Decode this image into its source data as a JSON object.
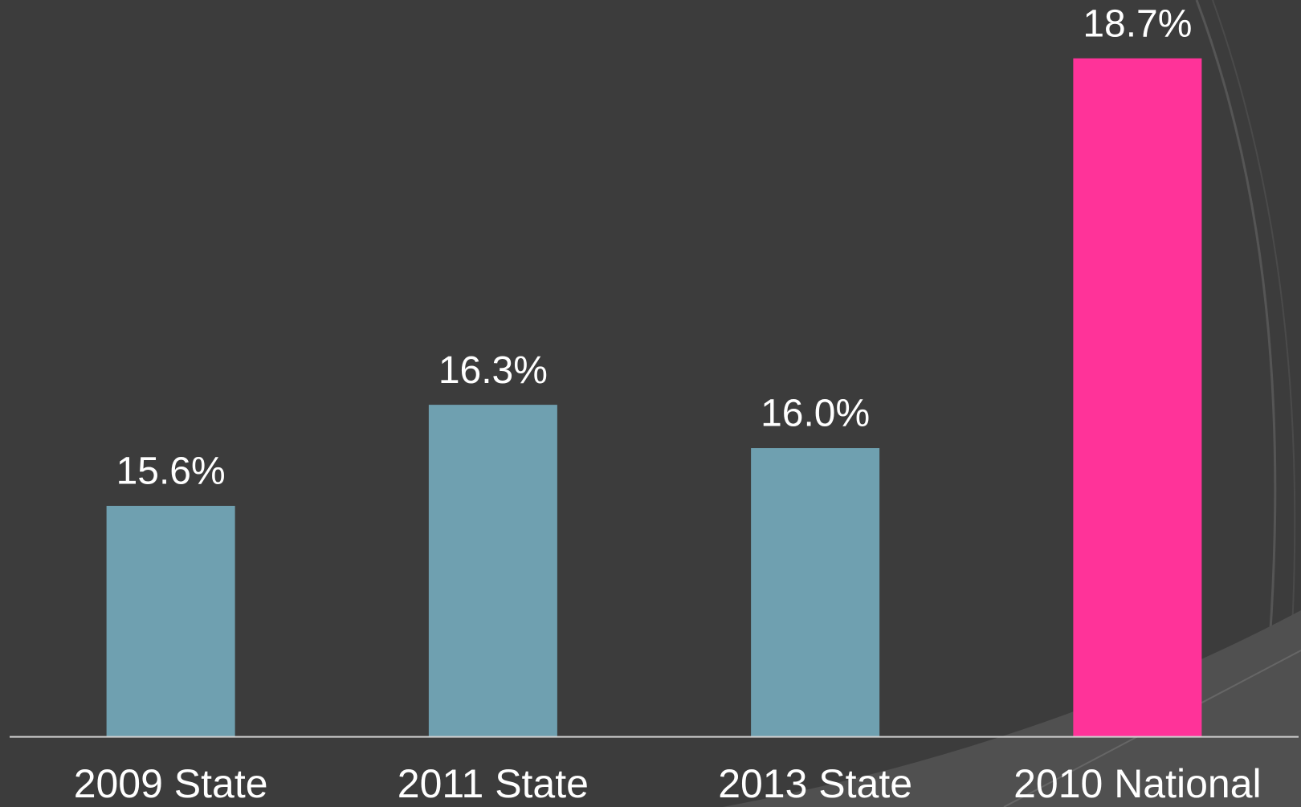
{
  "chart_data": {
    "type": "bar",
    "categories": [
      "2009 State",
      "2011 State",
      "2013 State",
      "2010 National"
    ],
    "values": [
      15.6,
      16.3,
      16.0,
      18.7
    ],
    "value_labels": [
      "15.6%",
      "16.3%",
      "16.0%",
      "18.7%"
    ],
    "colors": [
      "#6fa0b0",
      "#6fa0b0",
      "#6fa0b0",
      "#ff3399"
    ],
    "ylim": [
      14,
      19
    ]
  }
}
